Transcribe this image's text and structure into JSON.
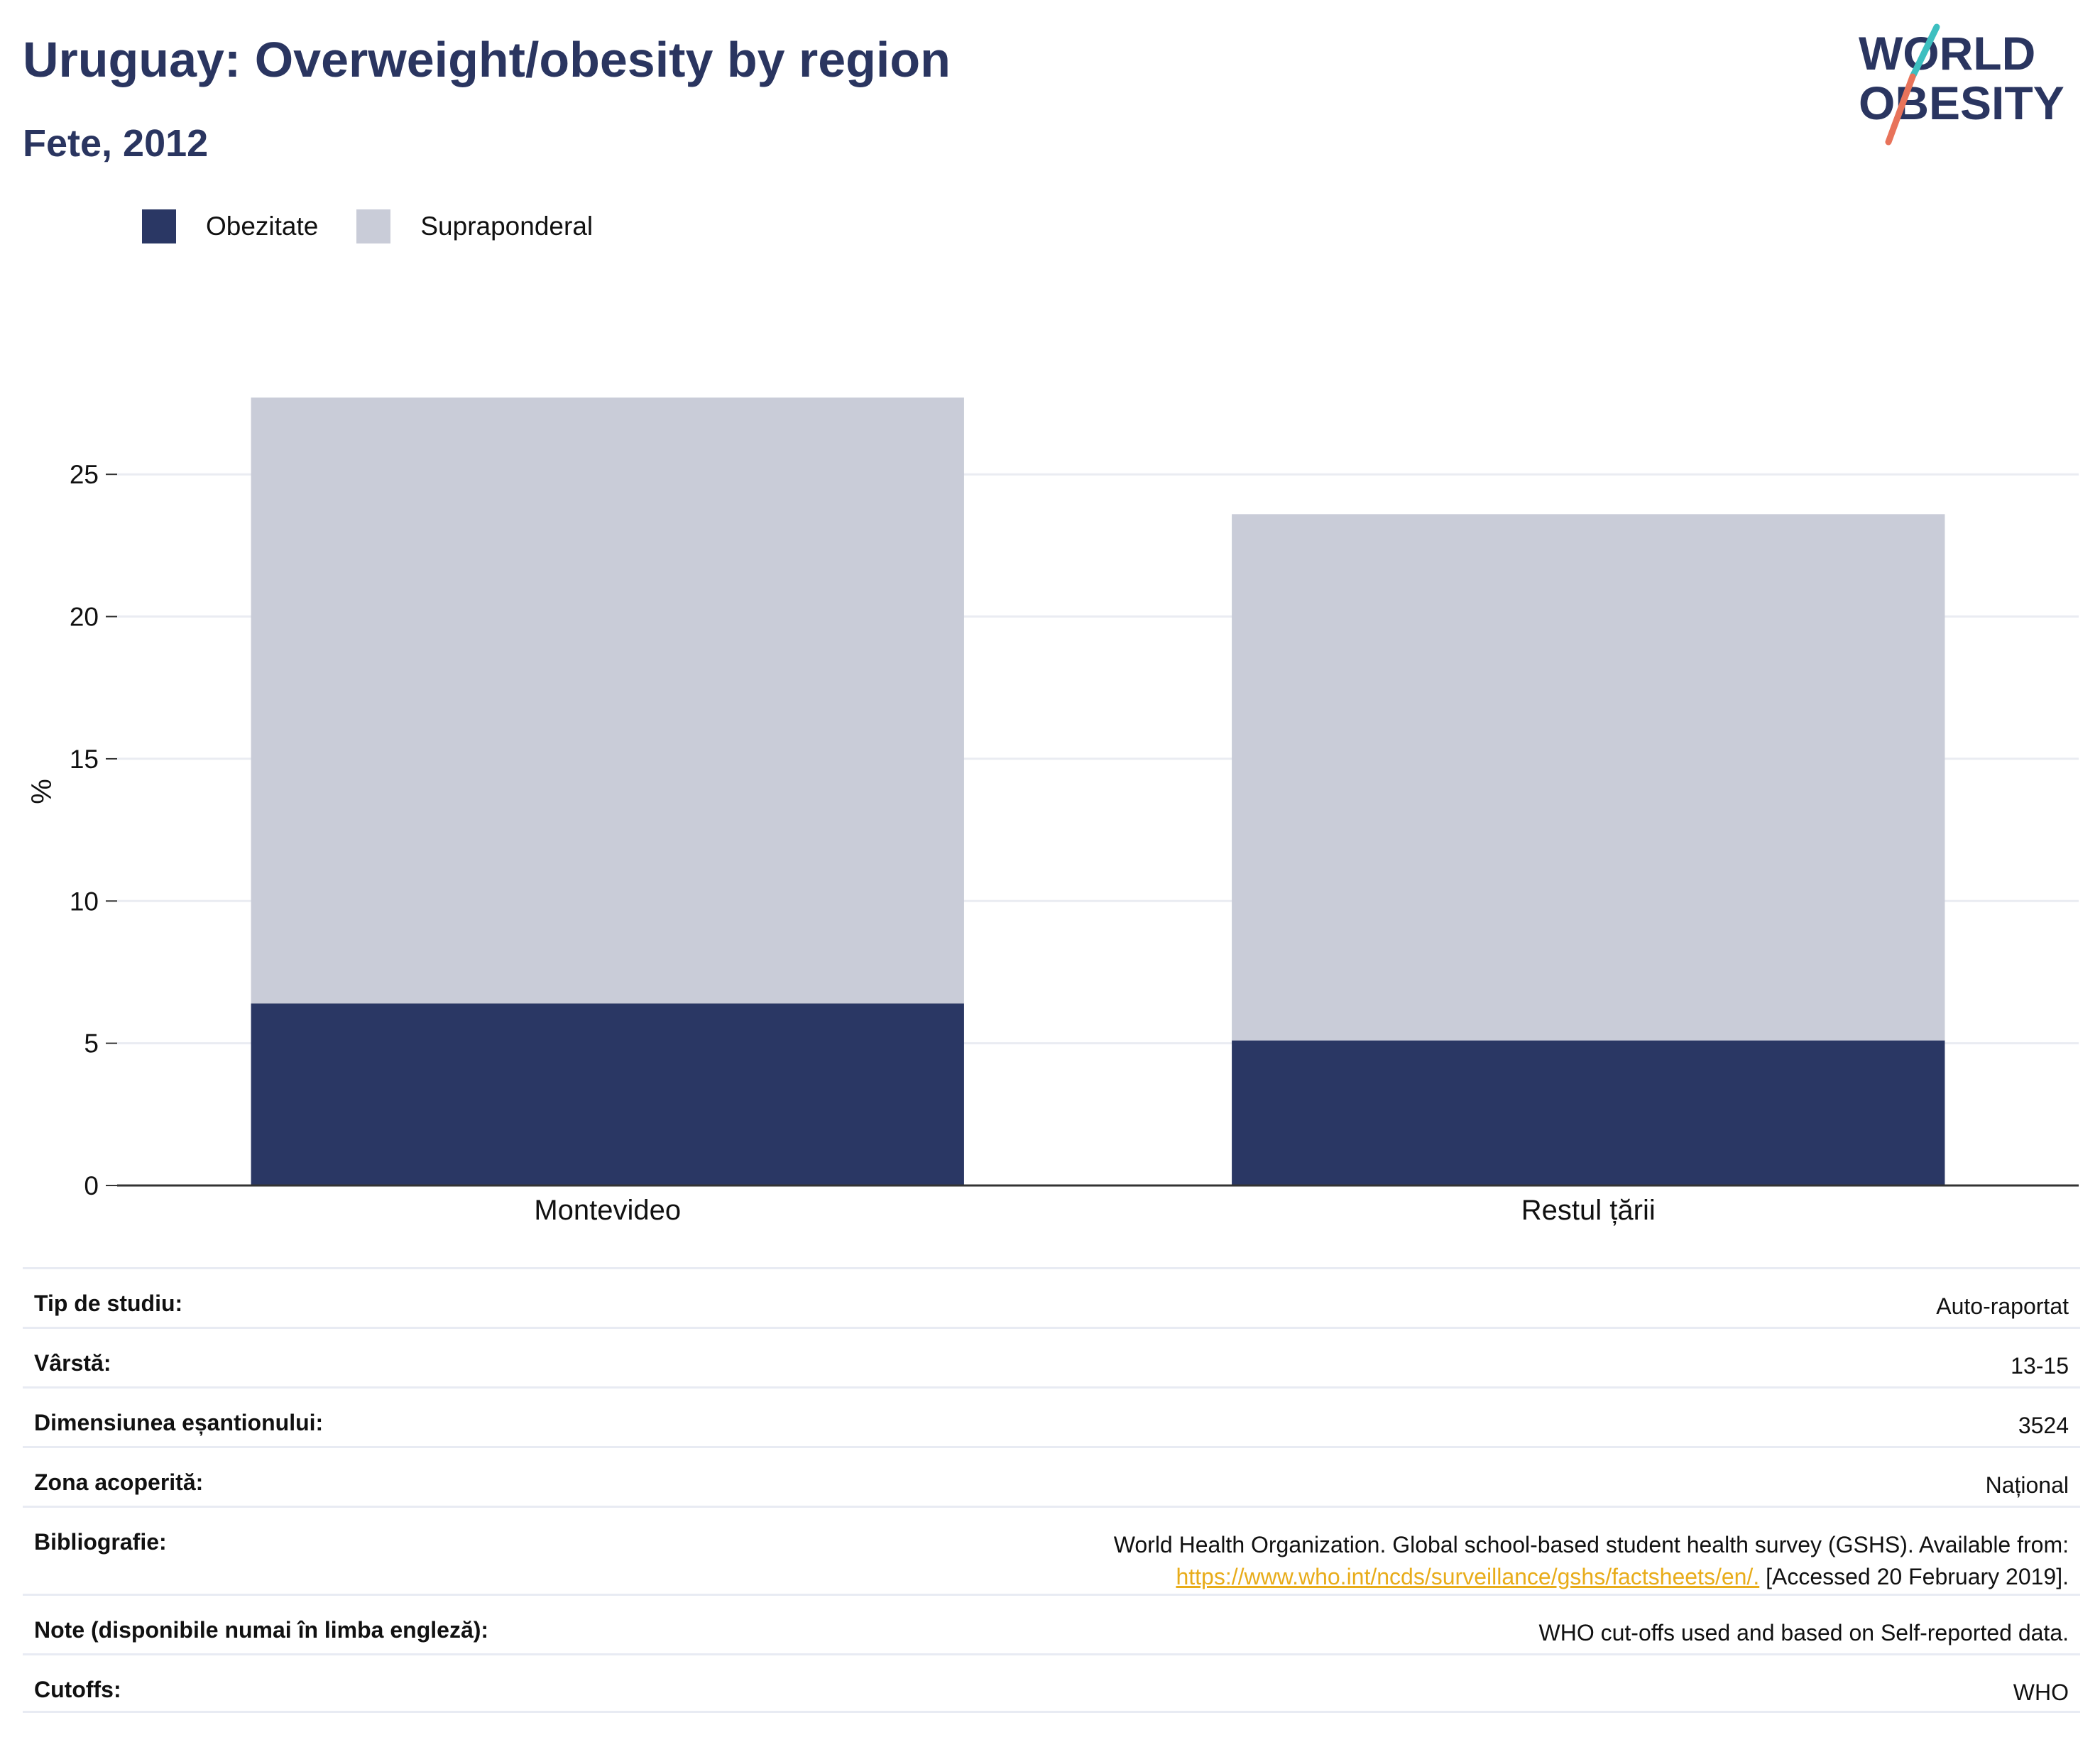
{
  "header": {
    "title": "Uruguay: Overweight/obesity by region",
    "subtitle": "Fete, 2012"
  },
  "logo": {
    "line1": "WORLD",
    "line2": "OBESITY"
  },
  "colors": {
    "title": "#2a3560",
    "obesity": "#2a3764",
    "overweight": "#c9ccd8",
    "grid": "#eaecf2",
    "axis": "#333333",
    "link": "#e8ac1a",
    "logo_teal": "#3dbfc0",
    "logo_coral": "#e8735a"
  },
  "chart_data": {
    "type": "bar",
    "stacked": true,
    "categories": [
      "Montevideo",
      "Restul țării"
    ],
    "series": [
      {
        "name": "Obezitate",
        "values": [
          6.4,
          5.1
        ]
      },
      {
        "name": "Supraponderal",
        "values": [
          21.3,
          18.5
        ]
      }
    ],
    "xlabel": "",
    "ylabel": "%",
    "ylim": [
      0,
      27.7
    ],
    "yticks": [
      0,
      5,
      10,
      15,
      20,
      25
    ],
    "grid": true,
    "legend_position": "top-left"
  },
  "meta": {
    "rows": [
      {
        "label": "Tip de studiu:",
        "value": "Auto-raportat"
      },
      {
        "label": "Vârstă:",
        "value": "13-15"
      },
      {
        "label": "Dimensiunea eșantionului:",
        "value": "3524"
      },
      {
        "label": "Zona acoperită:",
        "value": "Național"
      },
      {
        "label": "Bibliografie:",
        "value_line1": "World Health Organization. Global school-based student health survey (GSHS). Available from:",
        "link": "https://www.who.int/ncds/surveillance/gshs/factsheets/en/.",
        "value_after_link": "[Accessed 20 February 2019]."
      },
      {
        "label": "Note (disponibile numai în limba engleză):",
        "value": "WHO cut-offs used and based on Self-reported data."
      },
      {
        "label": "Cutoffs:",
        "value": "WHO"
      }
    ]
  }
}
